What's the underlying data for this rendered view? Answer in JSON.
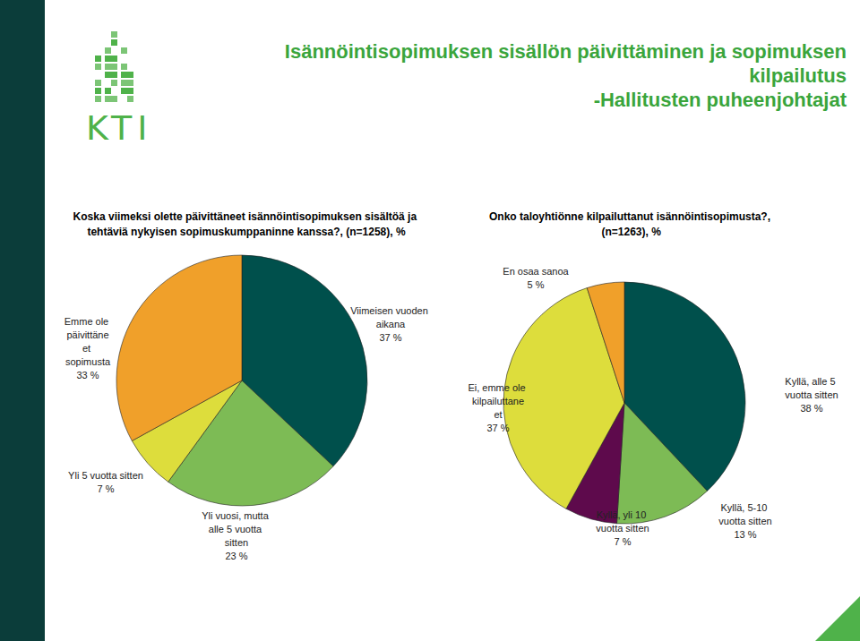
{
  "page": {
    "title": "Isännöintisopimuksen sisällön päivittäminen ja sopimuksen kilpailutus",
    "subtitle": "-Hallitusten puheenjohtajat",
    "logo": "KTI"
  },
  "chart_data": [
    {
      "type": "pie",
      "title": "Koska viimeksi olette päivittäneet isännöintisopimuksen sisältöä ja tehtäviä nykyisen sopimuskumppaninne kanssa?, (n=1258), %",
      "categories": [
        "Viimeisen vuoden aikana",
        "Yli vuosi, mutta alle 5 vuotta sitten",
        "Yli 5 vuotta sitten",
        "Emme ole päivittäneet sopimusta"
      ],
      "values": [
        37,
        23,
        7,
        33
      ],
      "value_labels": [
        "37 %",
        "23 %",
        "7 %",
        "33 %"
      ],
      "colors": [
        "#00504c",
        "#7dbb55",
        "#dddd3c",
        "#f0a02a"
      ],
      "data_labels": true
    },
    {
      "type": "pie",
      "title": "Onko taloyhtiönne kilpailuttanut isännöintisopimusta?, (n=1263), %",
      "categories": [
        "Kyllä, alle 5 vuotta sitten",
        "Kyllä, 5-10 vuotta sitten",
        "Kyllä, yli 10 vuotta sitten",
        "Ei, emme ole kilpailuttaneet",
        "En osaa sanoa"
      ],
      "values": [
        38,
        13,
        7,
        37,
        5
      ],
      "value_labels": [
        "38 %",
        "13 %",
        "7 %",
        "37 %",
        "5 %"
      ],
      "colors": [
        "#00504c",
        "#7dbb55",
        "#5e0a4c",
        "#dddd3c",
        "#f0a02a"
      ],
      "data_labels": true
    }
  ]
}
